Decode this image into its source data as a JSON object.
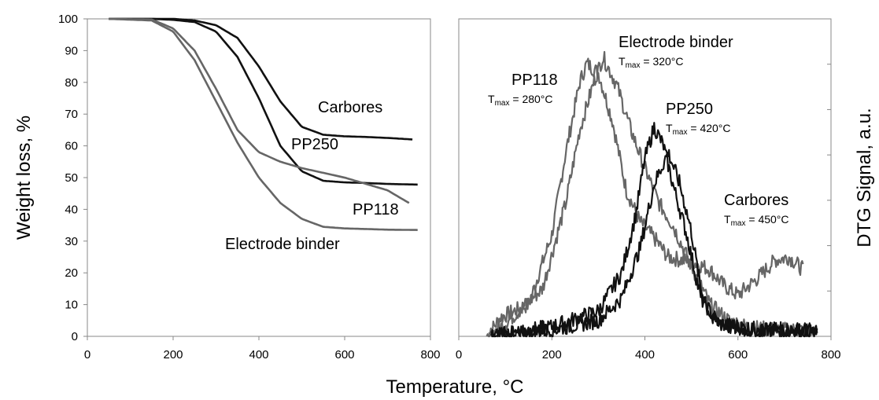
{
  "chart_data": [
    {
      "type": "line",
      "ylabel": "Weight loss, %",
      "xlim": [
        0,
        800
      ],
      "ylim": [
        0,
        100
      ],
      "x_ticks": [
        "0",
        "200",
        "400",
        "600",
        "800"
      ],
      "y_ticks": [
        "0",
        "10",
        "20",
        "30",
        "40",
        "50",
        "60",
        "70",
        "80",
        "90",
        "100"
      ],
      "grid": false,
      "series": [
        {
          "name": "Carbores",
          "color": "#111111",
          "x": [
            50,
            150,
            200,
            250,
            300,
            350,
            400,
            450,
            500,
            550,
            600,
            650,
            700,
            760
          ],
          "y": [
            100,
            100,
            100,
            99.5,
            98,
            94,
            85,
            74,
            66,
            63.5,
            63,
            62.8,
            62.5,
            62
          ]
        },
        {
          "name": "PP250",
          "color": "#111111",
          "x": [
            50,
            150,
            200,
            250,
            300,
            350,
            400,
            450,
            500,
            550,
            600,
            650,
            700,
            770
          ],
          "y": [
            100,
            100,
            99.7,
            99,
            96,
            88,
            75,
            60,
            52,
            49,
            48.5,
            48.3,
            48,
            47.8
          ]
        },
        {
          "name": "PP118",
          "color": "#666666",
          "x": [
            50,
            150,
            200,
            250,
            300,
            350,
            400,
            450,
            500,
            550,
            600,
            650,
            700,
            750
          ],
          "y": [
            100,
            99.8,
            97,
            90,
            78,
            65,
            58,
            55,
            53,
            51.5,
            50,
            48,
            46,
            42
          ]
        },
        {
          "name": "Electrode binder",
          "color": "#666666",
          "x": [
            50,
            150,
            200,
            250,
            300,
            350,
            400,
            450,
            500,
            550,
            600,
            650,
            700,
            770
          ],
          "y": [
            100,
            99.5,
            96,
            87,
            74,
            61,
            50,
            42,
            37,
            34.5,
            34,
            33.8,
            33.6,
            33.5
          ]
        }
      ],
      "labels": {
        "carbores": "Carbores",
        "pp250": "PP250",
        "pp118": "PP118",
        "binder": "Electrode binder"
      }
    },
    {
      "type": "line",
      "ylabel": "DTG Signal, a.u.",
      "xlim": [
        0,
        800
      ],
      "ylim": [
        0,
        100
      ],
      "x_ticks": [
        "0",
        "200",
        "400",
        "600",
        "800"
      ],
      "grid": false,
      "series": [
        {
          "name": "PP118",
          "color": "#666666",
          "x": [
            60,
            90,
            150,
            200,
            230,
            260,
            275,
            300,
            330,
            360,
            390,
            420,
            450,
            480,
            510,
            540,
            570,
            600,
            640,
            680,
            710,
            740
          ],
          "y": [
            0,
            6,
            10,
            32,
            58,
            80,
            86,
            83,
            68,
            46,
            36,
            31,
            25,
            24,
            23,
            21,
            16,
            13,
            18,
            24,
            25,
            21
          ]
        },
        {
          "name": "Electrode binder",
          "color": "#666666",
          "x": [
            65,
            100,
            180,
            230,
            260,
            290,
            310,
            340,
            370,
            400,
            430,
            460,
            500,
            540,
            580,
            620,
            680,
            740,
            770
          ],
          "y": [
            0,
            4,
            15,
            42,
            65,
            80,
            88,
            79,
            65,
            53,
            42,
            35,
            22,
            10,
            5,
            3,
            2,
            2,
            1
          ]
        },
        {
          "name": "PP250",
          "color": "#111111",
          "x": [
            70,
            200,
            300,
            350,
            380,
            400,
            420,
            440,
            460,
            490,
            520,
            560,
            600,
            650,
            700,
            750,
            770
          ],
          "y": [
            0,
            3,
            8,
            20,
            38,
            56,
            66,
            60,
            48,
            32,
            12,
            4,
            3,
            2,
            2,
            2,
            1
          ]
        },
        {
          "name": "Carbores",
          "color": "#111111",
          "x": [
            70,
            200,
            300,
            350,
            390,
            420,
            450,
            475,
            500,
            520,
            545,
            580,
            620,
            680,
            720,
            770
          ],
          "y": [
            0,
            2,
            5,
            12,
            28,
            48,
            58,
            48,
            33,
            15,
            5,
            3,
            2,
            2,
            2,
            1
          ]
        }
      ],
      "annotations": {
        "binder_name": "Electrode binder",
        "binder_tmax": "320°C",
        "pp118_name": "PP118",
        "pp118_tmax": "280°C",
        "pp250_name": "PP250",
        "pp250_tmax": "420°C",
        "carbores_name": "Carbores",
        "carbores_tmax": "450°C",
        "tmax_prefix": "T",
        "tmax_sub": "max",
        "tmax_eq": " = "
      }
    }
  ],
  "shared": {
    "xlabel": "Temperature, °C"
  }
}
